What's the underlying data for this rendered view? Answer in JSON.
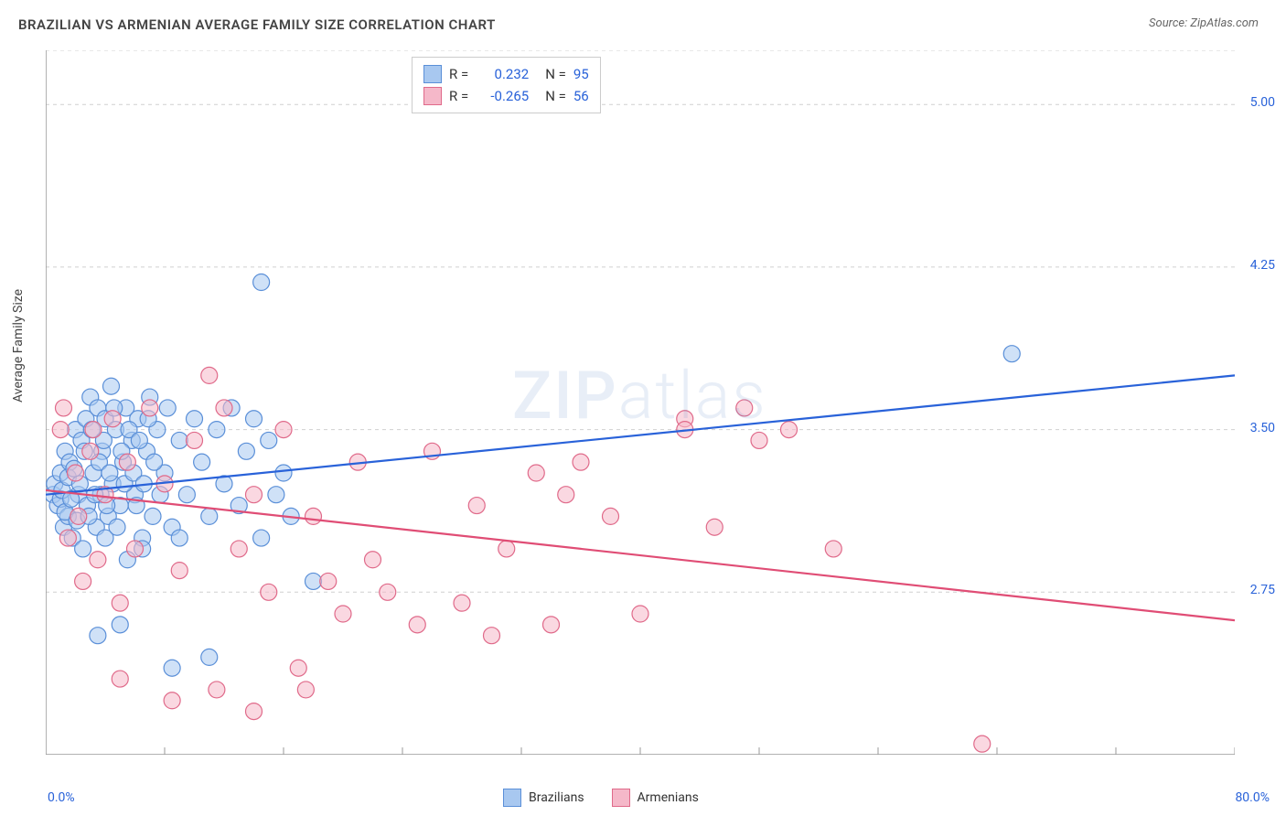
{
  "title": "BRAZILIAN VS ARMENIAN AVERAGE FAMILY SIZE CORRELATION CHART",
  "source": "Source: ZipAtlas.com",
  "ylabel": "Average Family Size",
  "watermark_zip": "ZIP",
  "watermark_atlas": "atlas",
  "chart": {
    "type": "scatter-with-regression",
    "xlim": [
      0,
      80
    ],
    "ylim": [
      2.0,
      5.25
    ],
    "x_unit": "%",
    "xtick_left": "0.0%",
    "xtick_right": "80.0%",
    "yticks": [
      2.75,
      3.5,
      4.25,
      5.0
    ],
    "ytick_labels": [
      "2.75",
      "3.50",
      "4.25",
      "5.00"
    ],
    "xtick_minor": [
      0,
      8,
      16,
      24,
      32,
      40,
      48,
      56,
      64,
      72,
      80
    ],
    "grid_color": "#d0d0d0",
    "grid_dash": "4,4",
    "background_color": "#ffffff",
    "axis_color": "#999999",
    "marker_radius": 9,
    "marker_stroke_width": 1.2,
    "line_width": 2.2,
    "series": [
      {
        "name": "Brazilians",
        "R": "0.232",
        "N": "95",
        "fill": "#a8c8f0",
        "fill_opacity": 0.55,
        "stroke": "#5a8fd8",
        "line_color": "#2962d9",
        "trend": {
          "x1": 0,
          "y1": 3.2,
          "x2": 80,
          "y2": 3.75
        },
        "points": [
          [
            0.5,
            3.2
          ],
          [
            0.6,
            3.25
          ],
          [
            0.8,
            3.15
          ],
          [
            1.0,
            3.3
          ],
          [
            1.2,
            3.05
          ],
          [
            1.3,
            3.4
          ],
          [
            1.5,
            3.1
          ],
          [
            1.6,
            3.35
          ],
          [
            1.8,
            3.0
          ],
          [
            2.0,
            3.5
          ],
          [
            2.2,
            3.2
          ],
          [
            2.4,
            3.45
          ],
          [
            2.5,
            2.95
          ],
          [
            2.7,
            3.55
          ],
          [
            2.8,
            3.15
          ],
          [
            3.0,
            3.65
          ],
          [
            3.2,
            3.3
          ],
          [
            3.4,
            3.05
          ],
          [
            3.5,
            3.6
          ],
          [
            3.7,
            3.2
          ],
          [
            3.8,
            3.4
          ],
          [
            4.0,
            3.55
          ],
          [
            4.2,
            3.1
          ],
          [
            4.4,
            3.7
          ],
          [
            4.5,
            3.25
          ],
          [
            4.7,
            3.5
          ],
          [
            5.0,
            3.15
          ],
          [
            5.2,
            3.35
          ],
          [
            5.4,
            3.6
          ],
          [
            5.5,
            2.9
          ],
          [
            5.8,
            3.45
          ],
          [
            6.0,
            3.2
          ],
          [
            6.2,
            3.55
          ],
          [
            6.5,
            3.0
          ],
          [
            6.8,
            3.4
          ],
          [
            7.0,
            3.65
          ],
          [
            7.2,
            3.1
          ],
          [
            7.5,
            3.5
          ],
          [
            8.0,
            3.3
          ],
          [
            8.2,
            3.6
          ],
          [
            8.5,
            3.05
          ],
          [
            9.0,
            3.45
          ],
          [
            9.5,
            3.2
          ],
          [
            10.0,
            3.55
          ],
          [
            10.5,
            3.35
          ],
          [
            11.0,
            3.1
          ],
          [
            11.5,
            3.5
          ],
          [
            12.0,
            3.25
          ],
          [
            12.5,
            3.6
          ],
          [
            13.0,
            3.15
          ],
          [
            13.5,
            3.4
          ],
          [
            14.0,
            3.55
          ],
          [
            14.5,
            3.0
          ],
          [
            15.0,
            3.45
          ],
          [
            15.5,
            3.2
          ],
          [
            16.0,
            3.3
          ],
          [
            16.5,
            3.1
          ],
          [
            3.5,
            2.55
          ],
          [
            5.0,
            2.6
          ],
          [
            8.5,
            2.4
          ],
          [
            11.0,
            2.45
          ],
          [
            18.0,
            2.8
          ],
          [
            14.5,
            4.18
          ],
          [
            4.0,
            3.0
          ],
          [
            6.5,
            2.95
          ],
          [
            9.0,
            3.0
          ],
          [
            65.0,
            3.85
          ],
          [
            1.0,
            3.18
          ],
          [
            1.1,
            3.22
          ],
          [
            1.3,
            3.12
          ],
          [
            1.5,
            3.28
          ],
          [
            1.7,
            3.18
          ],
          [
            1.9,
            3.32
          ],
          [
            2.1,
            3.08
          ],
          [
            2.3,
            3.25
          ],
          [
            2.6,
            3.4
          ],
          [
            2.9,
            3.1
          ],
          [
            3.1,
            3.5
          ],
          [
            3.3,
            3.2
          ],
          [
            3.6,
            3.35
          ],
          [
            3.9,
            3.45
          ],
          [
            4.1,
            3.15
          ],
          [
            4.3,
            3.3
          ],
          [
            4.6,
            3.6
          ],
          [
            4.8,
            3.05
          ],
          [
            5.1,
            3.4
          ],
          [
            5.3,
            3.25
          ],
          [
            5.6,
            3.5
          ],
          [
            5.9,
            3.3
          ],
          [
            6.1,
            3.15
          ],
          [
            6.3,
            3.45
          ],
          [
            6.6,
            3.25
          ],
          [
            6.9,
            3.55
          ],
          [
            7.3,
            3.35
          ],
          [
            7.7,
            3.2
          ]
        ]
      },
      {
        "name": "Armenians",
        "R": "-0.265",
        "N": "56",
        "fill": "#f5b8c9",
        "fill_opacity": 0.55,
        "stroke": "#e06a8a",
        "line_color": "#e04d75",
        "trend": {
          "x1": 0,
          "y1": 3.22,
          "x2": 80,
          "y2": 2.62
        },
        "points": [
          [
            1.0,
            3.5
          ],
          [
            1.5,
            3.0
          ],
          [
            2.0,
            3.3
          ],
          [
            2.5,
            2.8
          ],
          [
            3.0,
            3.4
          ],
          [
            3.5,
            2.9
          ],
          [
            4.0,
            3.2
          ],
          [
            4.5,
            3.55
          ],
          [
            5.0,
            2.7
          ],
          [
            5.5,
            3.35
          ],
          [
            6.0,
            2.95
          ],
          [
            7.0,
            3.6
          ],
          [
            8.0,
            3.25
          ],
          [
            9.0,
            2.85
          ],
          [
            10.0,
            3.45
          ],
          [
            11.0,
            3.75
          ],
          [
            11.5,
            2.3
          ],
          [
            12.0,
            3.6
          ],
          [
            13.0,
            2.95
          ],
          [
            14.0,
            3.2
          ],
          [
            15.0,
            2.75
          ],
          [
            16.0,
            3.5
          ],
          [
            17.0,
            2.4
          ],
          [
            18.0,
            3.1
          ],
          [
            19.0,
            2.8
          ],
          [
            20.0,
            2.65
          ],
          [
            21.0,
            3.35
          ],
          [
            22.0,
            2.9
          ],
          [
            23.0,
            2.75
          ],
          [
            25.0,
            2.6
          ],
          [
            26.0,
            3.4
          ],
          [
            28.0,
            2.7
          ],
          [
            29.0,
            3.15
          ],
          [
            30.0,
            2.55
          ],
          [
            31.0,
            2.95
          ],
          [
            33.0,
            3.3
          ],
          [
            34.0,
            2.6
          ],
          [
            35.0,
            3.2
          ],
          [
            36.0,
            3.35
          ],
          [
            38.0,
            3.1
          ],
          [
            40.0,
            2.65
          ],
          [
            43.0,
            3.55
          ],
          [
            45.0,
            3.05
          ],
          [
            47.0,
            3.6
          ],
          [
            48.0,
            3.45
          ],
          [
            50.0,
            3.5
          ],
          [
            53.0,
            2.95
          ],
          [
            8.5,
            2.25
          ],
          [
            14.0,
            2.2
          ],
          [
            63.0,
            2.05
          ],
          [
            43.0,
            3.5
          ],
          [
            5.0,
            2.35
          ],
          [
            17.5,
            2.3
          ],
          [
            1.2,
            3.6
          ],
          [
            2.2,
            3.1
          ],
          [
            3.2,
            3.5
          ]
        ]
      }
    ],
    "legend_label_color": "#333333",
    "stat_value_color": "#2962d9"
  },
  "legend_bottom": {
    "items": [
      "Brazilians",
      "Armenians"
    ]
  }
}
